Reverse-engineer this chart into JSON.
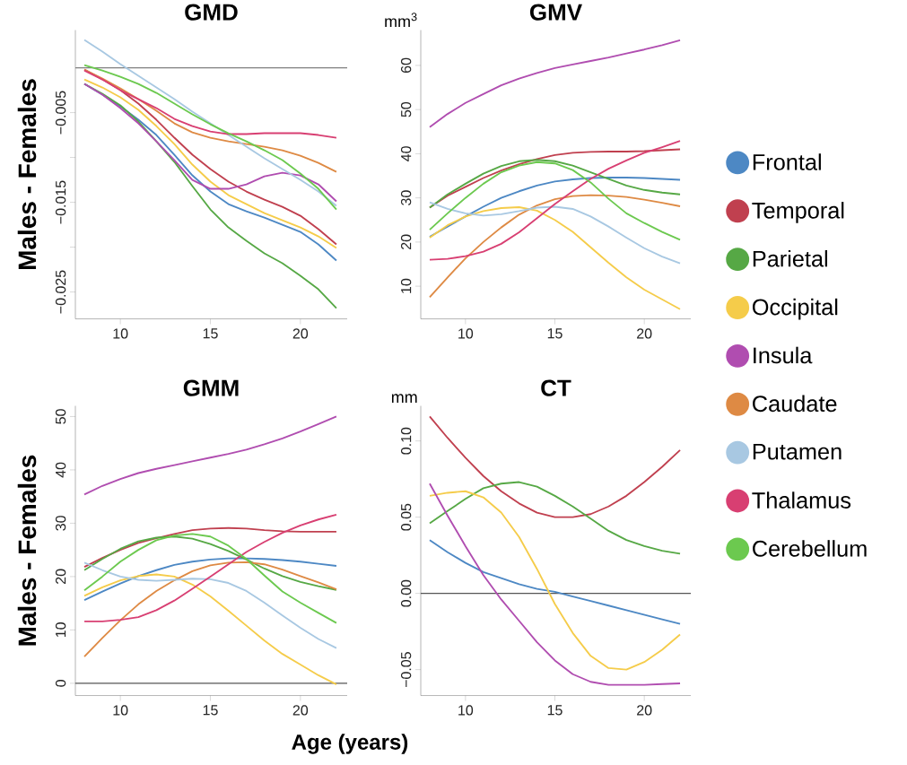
{
  "chart_data": [
    {
      "type": "line",
      "title": "GMD",
      "ylabel": "Males - Females",
      "x": [
        8,
        9,
        10,
        11,
        12,
        13,
        14,
        15,
        16,
        17,
        18,
        19,
        20,
        21,
        22
      ],
      "xlim": [
        7.5,
        22.6
      ],
      "xticks": [
        10,
        15,
        20
      ],
      "ylim": [
        -0.028,
        0.0042
      ],
      "yticks": [
        {
          "value": -0.005,
          "label": "−0.005"
        },
        {
          "value": -0.01,
          "label": null
        },
        {
          "value": -0.015,
          "label": "−0.015"
        },
        {
          "value": -0.02,
          "label": null
        },
        {
          "value": -0.025,
          "label": "−0.025"
        }
      ],
      "legend": "right",
      "ref_lines": [
        {
          "axis": "y",
          "value": 0,
          "color": "#7f7f7f"
        }
      ],
      "series": [
        {
          "name": "Frontal",
          "color": "#4d88c4",
          "values": [
            -0.0018,
            -0.003,
            -0.0043,
            -0.0058,
            -0.0075,
            -0.0097,
            -0.012,
            -0.0138,
            -0.0152,
            -0.016,
            -0.0167,
            -0.0175,
            -0.0183,
            -0.0197,
            -0.0215
          ]
        },
        {
          "name": "Temporal",
          "color": "#c0404f",
          "values": [
            -0.0002,
            -0.0013,
            -0.0025,
            -0.004,
            -0.0058,
            -0.0078,
            -0.0097,
            -0.0113,
            -0.0127,
            -0.0138,
            -0.0147,
            -0.0155,
            -0.0165,
            -0.018,
            -0.0197
          ]
        },
        {
          "name": "Parietal",
          "color": "#56a845",
          "values": [
            -0.0018,
            -0.0029,
            -0.0042,
            -0.006,
            -0.0082,
            -0.0105,
            -0.0132,
            -0.0158,
            -0.0178,
            -0.0193,
            -0.0207,
            -0.0218,
            -0.0232,
            -0.0247,
            -0.0268
          ]
        },
        {
          "name": "Occipital",
          "color": "#f5cc4a",
          "values": [
            -0.0013,
            -0.0022,
            -0.0033,
            -0.0047,
            -0.0065,
            -0.0085,
            -0.0108,
            -0.0127,
            -0.0142,
            -0.0152,
            -0.0162,
            -0.017,
            -0.0178,
            -0.0188,
            -0.0201
          ]
        },
        {
          "name": "Insula",
          "color": "#b04db0",
          "values": [
            -0.0018,
            -0.003,
            -0.0045,
            -0.0062,
            -0.0082,
            -0.0103,
            -0.0125,
            -0.0135,
            -0.0135,
            -0.013,
            -0.0121,
            -0.0117,
            -0.012,
            -0.013,
            -0.0149
          ]
        },
        {
          "name": "Caudate",
          "color": "#de8a44",
          "values": [
            -0.0002,
            -0.0012,
            -0.0023,
            -0.0035,
            -0.0048,
            -0.0062,
            -0.0072,
            -0.0078,
            -0.0082,
            -0.0085,
            -0.0088,
            -0.0092,
            -0.0098,
            -0.0106,
            -0.0116
          ]
        },
        {
          "name": "Putamen",
          "color": "#a8c8e2",
          "values": [
            0.0031,
            0.0018,
            0.0004,
            -0.0009,
            -0.0022,
            -0.0035,
            -0.0049,
            -0.0062,
            -0.0075,
            -0.0088,
            -0.0101,
            -0.0113,
            -0.0125,
            -0.0138,
            -0.0154
          ]
        },
        {
          "name": "Thalamus",
          "color": "#d83f72",
          "values": [
            -0.0003,
            -0.0013,
            -0.0025,
            -0.0035,
            -0.0045,
            -0.0057,
            -0.0065,
            -0.0071,
            -0.0074,
            -0.0074,
            -0.0073,
            -0.0073,
            -0.0073,
            -0.0075,
            -0.0078
          ]
        },
        {
          "name": "Cerebellum",
          "color": "#6cc94f",
          "values": [
            0.0003,
            -0.0003,
            -0.001,
            -0.0018,
            -0.0028,
            -0.004,
            -0.0052,
            -0.0063,
            -0.0073,
            -0.0082,
            -0.0092,
            -0.0103,
            -0.0118,
            -0.0135,
            -0.0158
          ]
        }
      ]
    },
    {
      "type": "line",
      "title": "GMV",
      "annotations": [
        "mm$^{3}$"
      ],
      "x": [
        8,
        9,
        10,
        11,
        12,
        13,
        14,
        15,
        16,
        17,
        18,
        19,
        20,
        21,
        22
      ],
      "xlim": [
        7.5,
        22.6
      ],
      "xticks": [
        10,
        15,
        20
      ],
      "ylim": [
        2.6,
        68
      ],
      "yticks": [
        10,
        20,
        30,
        40,
        50,
        60
      ],
      "series": [
        {
          "color": "#4d88c4",
          "values": [
            21.2,
            23.5,
            25.8,
            28,
            30,
            31.5,
            32.8,
            33.7,
            34.2,
            34.5,
            34.6,
            34.6,
            34.5,
            34.3,
            34.1
          ]
        },
        {
          "color": "#c0404f",
          "values": [
            27.8,
            30.5,
            32.5,
            34.5,
            36.2,
            37.6,
            38.8,
            39.7,
            40.2,
            40.4,
            40.5,
            40.5,
            40.6,
            40.8,
            41
          ]
        },
        {
          "color": "#56a845",
          "values": [
            27.8,
            30.8,
            33.2,
            35.5,
            37.2,
            38.3,
            38.6,
            38.3,
            37.3,
            35.8,
            34.3,
            32.8,
            31.8,
            31.2,
            30.8
          ]
        },
        {
          "color": "#f5cc4a",
          "values": [
            21,
            23.8,
            25.8,
            27,
            27.7,
            27.9,
            27.1,
            25,
            22.3,
            18.8,
            15.3,
            12,
            9.2,
            7,
            4.8
          ]
        },
        {
          "color": "#b04db0",
          "values": [
            46,
            49,
            51.5,
            53.5,
            55.5,
            57,
            58.3,
            59.4,
            60.2,
            61,
            61.8,
            62.7,
            63.6,
            64.6,
            65.7
          ]
        },
        {
          "color": "#de8a44",
          "values": [
            7.5,
            12,
            16.3,
            20,
            23.3,
            26.2,
            28.3,
            29.7,
            30.4,
            30.6,
            30.5,
            30.2,
            29.6,
            28.9,
            28.1
          ]
        },
        {
          "color": "#a8c8e2",
          "values": [
            29,
            27.5,
            26.5,
            26,
            26.3,
            27,
            27.8,
            28,
            27.5,
            25.8,
            23.5,
            21,
            18.6,
            16.7,
            15.2
          ]
        },
        {
          "color": "#d83f72",
          "values": [
            16,
            16.2,
            16.8,
            17.8,
            19.6,
            22.2,
            25.4,
            28.6,
            31.5,
            34.3,
            36.6,
            38.5,
            40.2,
            41.5,
            42.9
          ]
        },
        {
          "color": "#6cc94f",
          "values": [
            22.8,
            26.5,
            30,
            33.2,
            35.8,
            37.3,
            38.1,
            37.8,
            36.3,
            33.5,
            29.8,
            26.5,
            24.3,
            22.3,
            20.5
          ]
        }
      ]
    },
    {
      "type": "line",
      "title": "GMM",
      "ylabel": "Males - Females",
      "xlabel": "Age (years)",
      "x": [
        8,
        9,
        10,
        11,
        12,
        13,
        14,
        15,
        16,
        17,
        18,
        19,
        20,
        21,
        22
      ],
      "xlim": [
        7.5,
        22.6
      ],
      "xticks": [
        10,
        15,
        20
      ],
      "ylim": [
        -2.3,
        52
      ],
      "yticks": [
        0,
        10,
        20,
        30,
        40,
        50
      ],
      "ref_lines": [
        {
          "axis": "y",
          "value": 0,
          "color": "#555555"
        }
      ],
      "series": [
        {
          "color": "#4d88c4",
          "values": [
            15.6,
            17.2,
            18.7,
            20.1,
            21.2,
            22.2,
            22.8,
            23.2,
            23.4,
            23.4,
            23.3,
            23.1,
            22.8,
            22.4,
            22
          ]
        },
        {
          "color": "#c0404f",
          "values": [
            21.8,
            23.5,
            25,
            26.3,
            27.2,
            28,
            28.7,
            29,
            29.1,
            29,
            28.7,
            28.5,
            28.4,
            28.4,
            28.4
          ]
        },
        {
          "color": "#56a845",
          "values": [
            21.2,
            23.3,
            25.2,
            26.6,
            27.3,
            27.5,
            27.1,
            26.1,
            24.8,
            23.2,
            21.5,
            20.1,
            19,
            18.2,
            17.5
          ]
        },
        {
          "color": "#f5cc4a",
          "values": [
            16.4,
            18,
            19.3,
            20.1,
            20.4,
            20,
            18.5,
            16.3,
            13.6,
            10.8,
            8,
            5.5,
            3.5,
            1.5,
            -0.2
          ]
        },
        {
          "color": "#b04db0",
          "values": [
            35.4,
            37,
            38.3,
            39.4,
            40.2,
            40.9,
            41.6,
            42.3,
            43,
            43.8,
            44.8,
            45.9,
            47.2,
            48.6,
            50
          ]
        },
        {
          "color": "#de8a44",
          "values": [
            5,
            8.5,
            11.8,
            14.8,
            17.3,
            19.3,
            21,
            22.1,
            22.6,
            22.7,
            22.3,
            21.3,
            20.1,
            18.9,
            17.6
          ]
        },
        {
          "color": "#a8c8e2",
          "values": [
            22.6,
            21.2,
            20,
            19.4,
            19.2,
            19.4,
            19.6,
            19.5,
            18.8,
            17.3,
            15.1,
            12.7,
            10.4,
            8.3,
            6.6
          ]
        },
        {
          "color": "#d83f72",
          "values": [
            11.6,
            11.6,
            11.9,
            12.4,
            13.7,
            15.5,
            17.7,
            20,
            22.3,
            24.6,
            26.5,
            28.2,
            29.6,
            30.7,
            31.6
          ]
        },
        {
          "color": "#6cc94f",
          "values": [
            17.4,
            20,
            22.8,
            25,
            26.8,
            27.7,
            28,
            27.5,
            25.8,
            23.3,
            20.2,
            17.2,
            15.1,
            13.2,
            11.3
          ]
        }
      ]
    },
    {
      "type": "line",
      "title": "CT",
      "annotations": [
        "mm"
      ],
      "x": [
        8,
        9,
        10,
        11,
        12,
        13,
        14,
        15,
        16,
        17,
        18,
        19,
        20,
        21,
        22
      ],
      "xlim": [
        7.5,
        22.6
      ],
      "xticks": [
        10,
        15,
        20
      ],
      "ylim": [
        -0.067,
        0.123
      ],
      "yticks": [
        {
          "value": -0.05,
          "label": "−0.05"
        },
        {
          "value": 0,
          "label": "0.00"
        },
        {
          "value": 0.05,
          "label": "0.05"
        },
        {
          "value": 0.1,
          "label": "0.10"
        }
      ],
      "ref_lines": [
        {
          "axis": "y",
          "value": 0,
          "color": "#555555"
        }
      ],
      "series": [
        {
          "color": "#4d88c4",
          "values": [
            0.035,
            0.027,
            0.02,
            0.014,
            0.01,
            0.006,
            0.003,
            0.001,
            -0.002,
            -0.005,
            -0.008,
            -0.011,
            -0.014,
            -0.017,
            -0.02
          ]
        },
        {
          "color": "#c0404f",
          "values": [
            0.116,
            0.102,
            0.089,
            0.077,
            0.067,
            0.059,
            0.053,
            0.05,
            0.05,
            0.052,
            0.057,
            0.064,
            0.073,
            0.083,
            0.094
          ]
        },
        {
          "color": "#56a845",
          "values": [
            0.046,
            0.054,
            0.062,
            0.069,
            0.072,
            0.073,
            0.07,
            0.064,
            0.057,
            0.049,
            0.041,
            0.035,
            0.031,
            0.028,
            0.026
          ]
        },
        {
          "color": "#f5cc4a",
          "values": [
            0.064,
            0.066,
            0.067,
            0.063,
            0.053,
            0.037,
            0.016,
            -0.007,
            -0.026,
            -0.041,
            -0.049,
            -0.05,
            -0.045,
            -0.037,
            -0.027
          ]
        },
        {
          "color": "#b04db0",
          "values": [
            0.072,
            0.051,
            0.031,
            0.012,
            -0.004,
            -0.018,
            -0.032,
            -0.044,
            -0.053,
            -0.058,
            -0.06,
            -0.06,
            -0.06,
            -0.0595,
            -0.059
          ]
        }
      ]
    }
  ]
}
